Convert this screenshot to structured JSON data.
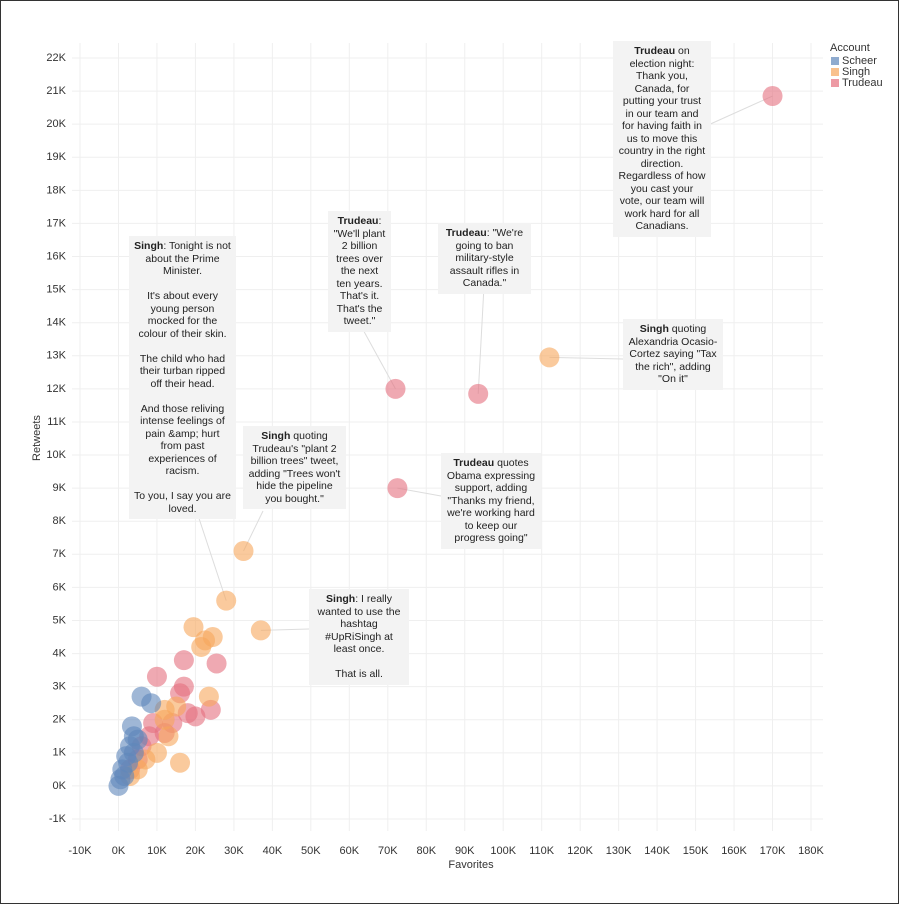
{
  "chart_data": {
    "type": "scatter",
    "x_label": "Favorites",
    "y_label": "Retweets",
    "legend_title": "Account",
    "legend_position": "top-right",
    "grid": true,
    "xlim": [
      -10000,
      180000
    ],
    "ylim": [
      -1000,
      22000
    ],
    "xticks": [
      {
        "value": -10000,
        "label": "-10K"
      },
      {
        "value": 0,
        "label": "0K"
      },
      {
        "value": 10000,
        "label": "10K"
      },
      {
        "value": 20000,
        "label": "20K"
      },
      {
        "value": 30000,
        "label": "30K"
      },
      {
        "value": 40000,
        "label": "40K"
      },
      {
        "value": 50000,
        "label": "50K"
      },
      {
        "value": 60000,
        "label": "60K"
      },
      {
        "value": 70000,
        "label": "70K"
      },
      {
        "value": 80000,
        "label": "80K"
      },
      {
        "value": 90000,
        "label": "90K"
      },
      {
        "value": 100000,
        "label": "100K"
      },
      {
        "value": 110000,
        "label": "110K"
      },
      {
        "value": 120000,
        "label": "120K"
      },
      {
        "value": 130000,
        "label": "130K"
      },
      {
        "value": 140000,
        "label": "140K"
      },
      {
        "value": 150000,
        "label": "150K"
      },
      {
        "value": 160000,
        "label": "160K"
      },
      {
        "value": 170000,
        "label": "170K"
      },
      {
        "value": 180000,
        "label": "180K"
      }
    ],
    "yticks": [
      {
        "value": -1000,
        "label": "-1K"
      },
      {
        "value": 0,
        "label": "0K"
      },
      {
        "value": 1000,
        "label": "1K"
      },
      {
        "value": 2000,
        "label": "2K"
      },
      {
        "value": 3000,
        "label": "3K"
      },
      {
        "value": 4000,
        "label": "4K"
      },
      {
        "value": 5000,
        "label": "5K"
      },
      {
        "value": 6000,
        "label": "6K"
      },
      {
        "value": 7000,
        "label": "7K"
      },
      {
        "value": 8000,
        "label": "8K"
      },
      {
        "value": 9000,
        "label": "9K"
      },
      {
        "value": 10000,
        "label": "10K"
      },
      {
        "value": 11000,
        "label": "11K"
      },
      {
        "value": 12000,
        "label": "12K"
      },
      {
        "value": 13000,
        "label": "13K"
      },
      {
        "value": 14000,
        "label": "14K"
      },
      {
        "value": 15000,
        "label": "15K"
      },
      {
        "value": 16000,
        "label": "16K"
      },
      {
        "value": 17000,
        "label": "17K"
      },
      {
        "value": 18000,
        "label": "18K"
      },
      {
        "value": 19000,
        "label": "19K"
      },
      {
        "value": 20000,
        "label": "20K"
      },
      {
        "value": 21000,
        "label": "21K"
      },
      {
        "value": 22000,
        "label": "22K"
      }
    ],
    "series": [
      {
        "name": "Scheer",
        "color": "#5f87bb",
        "x": [
          6000,
          8500,
          4000,
          3000,
          2000,
          1000,
          500,
          0,
          2500,
          4000,
          5000,
          1500,
          3500
        ],
        "values": [
          2700,
          2500,
          1500,
          1200,
          900,
          500,
          200,
          0,
          700,
          1000,
          1400,
          300,
          1800
        ]
      },
      {
        "name": "Singh",
        "color": "#f6a65c",
        "x": [
          112000,
          32500,
          28000,
          37000,
          19500,
          22500,
          24500,
          21500,
          23500,
          15000,
          12000,
          16000,
          13000,
          10000,
          7000,
          5000,
          3000,
          12000
        ],
        "values": [
          12950,
          7100,
          5600,
          4700,
          4800,
          4400,
          4500,
          4200,
          2700,
          2400,
          2000,
          700,
          1500,
          1000,
          800,
          500,
          300,
          2300
        ]
      },
      {
        "name": "Trudeau",
        "color": "#e56f7e",
        "x": [
          170000,
          72000,
          93500,
          72500,
          17000,
          10000,
          25500,
          17000,
          16000,
          24000,
          20000,
          14000,
          18000,
          12000,
          8000,
          6000,
          9000,
          5000,
          3000
        ],
        "values": [
          20850,
          12000,
          11850,
          9000,
          3800,
          3300,
          3700,
          3000,
          2800,
          2300,
          2100,
          1900,
          2200,
          1600,
          1500,
          1200,
          1900,
          800,
          500
        ]
      }
    ],
    "annotations": [
      {
        "name": "Trudeau",
        "text": " on election night: Thank you, Canada, for putting your trust in our team and for having faith in us to move this country in the right direction. Regardless of how you cast your vote, our team will work hard for all Canadians."
      },
      {
        "name": "Trudeau",
        "text": ": \"We'll plant 2 billion trees over the next ten years. That's it. That's the tweet.\""
      },
      {
        "name": "Trudeau",
        "text": ": \"We're going to ban military-style assault rifles in Canada.\""
      },
      {
        "name": "Singh",
        "text": " quoting Alexandria Ocasio-Cortez saying \"Tax the rich\", adding \"On it\""
      },
      {
        "name": "Singh",
        "text": ": Tonight is not about the Prime Minister.\n\nIt's about every young person mocked for the colour of their skin.\n\nThe child who had their turban ripped off their head.\n\nAnd those reliving intense feelings of pain &amp; hurt from past experiences of racism.\n\nTo you, I say you are loved."
      },
      {
        "name": "Singh",
        "text": " quoting Trudeau's \"plant 2 billion trees\" tweet, adding \"Trees won't hide the pipeline you bought.\""
      },
      {
        "name": "Trudeau",
        "text": " quotes Obama expressing support, adding \"Thanks my friend, we're working hard to keep our progress going\""
      },
      {
        "name": "Singh",
        "text": ": I really wanted to use the hashtag #UpRiSingh at least once.\n\nThat is all."
      }
    ]
  }
}
